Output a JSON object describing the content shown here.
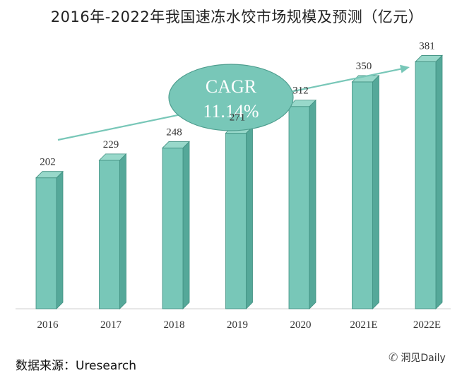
{
  "chart_data": {
    "type": "bar",
    "title": "2016年-2022年我国速冻水饺市场规模及预测（亿元）",
    "categories": [
      "2016",
      "2017",
      "2018",
      "2019",
      "2020",
      "2021E",
      "2022E"
    ],
    "values": [
      202,
      229,
      248,
      271,
      312,
      350,
      381
    ],
    "xlabel": "",
    "ylabel": "",
    "ylim": [
      0,
      400
    ],
    "annotation": {
      "label": "CAGR",
      "value": "11.14%"
    }
  },
  "source": {
    "text": "数据来源：Uresearch"
  },
  "watermark": {
    "text": "洞见Daily"
  },
  "colors": {
    "bar_front": "#78c7b8",
    "bar_side": "#55a899",
    "bar_top": "#98d8ca",
    "bar_edge": "#3f8f80",
    "bubble": "#78c7b8",
    "arrow": "#78c7b8"
  }
}
